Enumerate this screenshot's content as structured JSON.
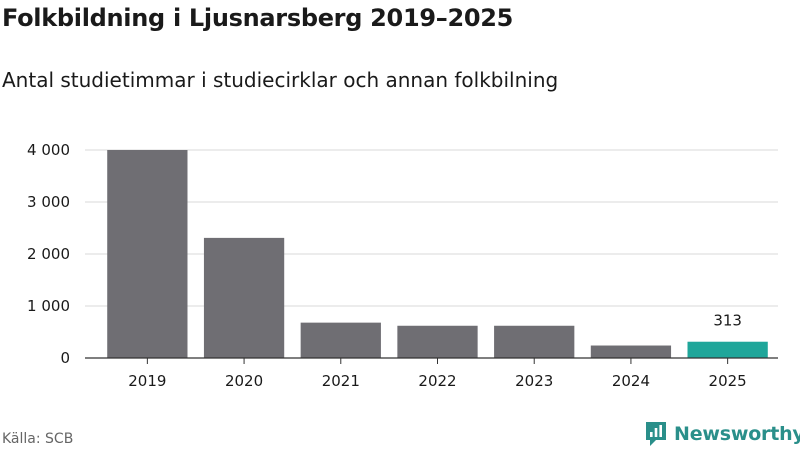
{
  "title": "Folkbildning i Ljusnarsberg 2019–2025",
  "subtitle": "Antal studietimmar i studiecirklar och annan folkbilning",
  "source": "Källa: SCB",
  "brand": {
    "name": "Newsworthy",
    "icon": "newsworthy-logo-icon",
    "color": "#2a8f8a"
  },
  "chart_data": {
    "type": "bar",
    "categories": [
      "2019",
      "2020",
      "2021",
      "2022",
      "2023",
      "2024",
      "2025"
    ],
    "values": [
      4000,
      2310,
      680,
      620,
      620,
      240,
      313
    ],
    "ylim": [
      0,
      4000
    ],
    "yticks": [
      0,
      1000,
      2000,
      3000,
      4000
    ],
    "ytick_labels": [
      "0",
      "1 000",
      "2 000",
      "3 000",
      "4 000"
    ],
    "grid": true,
    "bar_color": "#6f6e73",
    "highlight_color": "#1fa69a",
    "highlight_index": 6,
    "data_labels": [
      {
        "index": 6,
        "text": "313"
      }
    ]
  }
}
